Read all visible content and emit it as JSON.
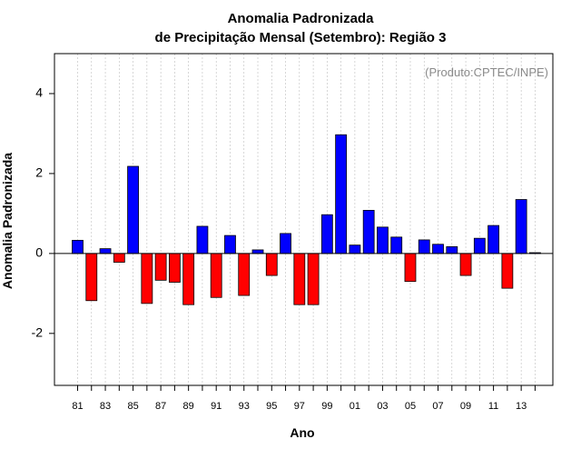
{
  "chart_data": {
    "type": "bar",
    "title": "Anomalia Padronizada",
    "subtitle": "de Precipitação Mensal (Setembro): Região 3",
    "xlabel": "Ano",
    "ylabel": "Anomalia Padronizada",
    "annotation": "(Produto:CPTEC/INPE)",
    "ylim": [
      -3.3,
      5.0
    ],
    "yticks": [
      -2,
      0,
      2,
      4
    ],
    "grid": "vertical dashed lines at each year",
    "legend": "none",
    "positive_color": "#0000ff",
    "negative_color": "#ff0000",
    "categories": [
      "81",
      "82",
      "83",
      "84",
      "85",
      "86",
      "87",
      "88",
      "89",
      "90",
      "91",
      "92",
      "93",
      "94",
      "95",
      "96",
      "97",
      "98",
      "99",
      "00",
      "01",
      "02",
      "03",
      "04",
      "05",
      "06",
      "07",
      "08",
      "09",
      "10",
      "11",
      "12",
      "13",
      "14"
    ],
    "tick_labels": [
      "81",
      "83",
      "85",
      "87",
      "89",
      "91",
      "93",
      "95",
      "97",
      "99",
      "01",
      "03",
      "05",
      "07",
      "09",
      "11",
      "13"
    ],
    "values": [
      0.33,
      -1.18,
      0.12,
      -0.22,
      2.18,
      -1.25,
      -0.67,
      -0.72,
      -1.28,
      0.68,
      -1.1,
      0.45,
      -1.05,
      0.09,
      -0.55,
      0.5,
      -1.28,
      -1.28,
      0.97,
      2.97,
      0.21,
      1.08,
      0.66,
      0.41,
      -0.7,
      0.34,
      0.23,
      0.17,
      -0.55,
      0.38,
      0.7,
      -0.87,
      1.35,
      0.02
    ]
  }
}
